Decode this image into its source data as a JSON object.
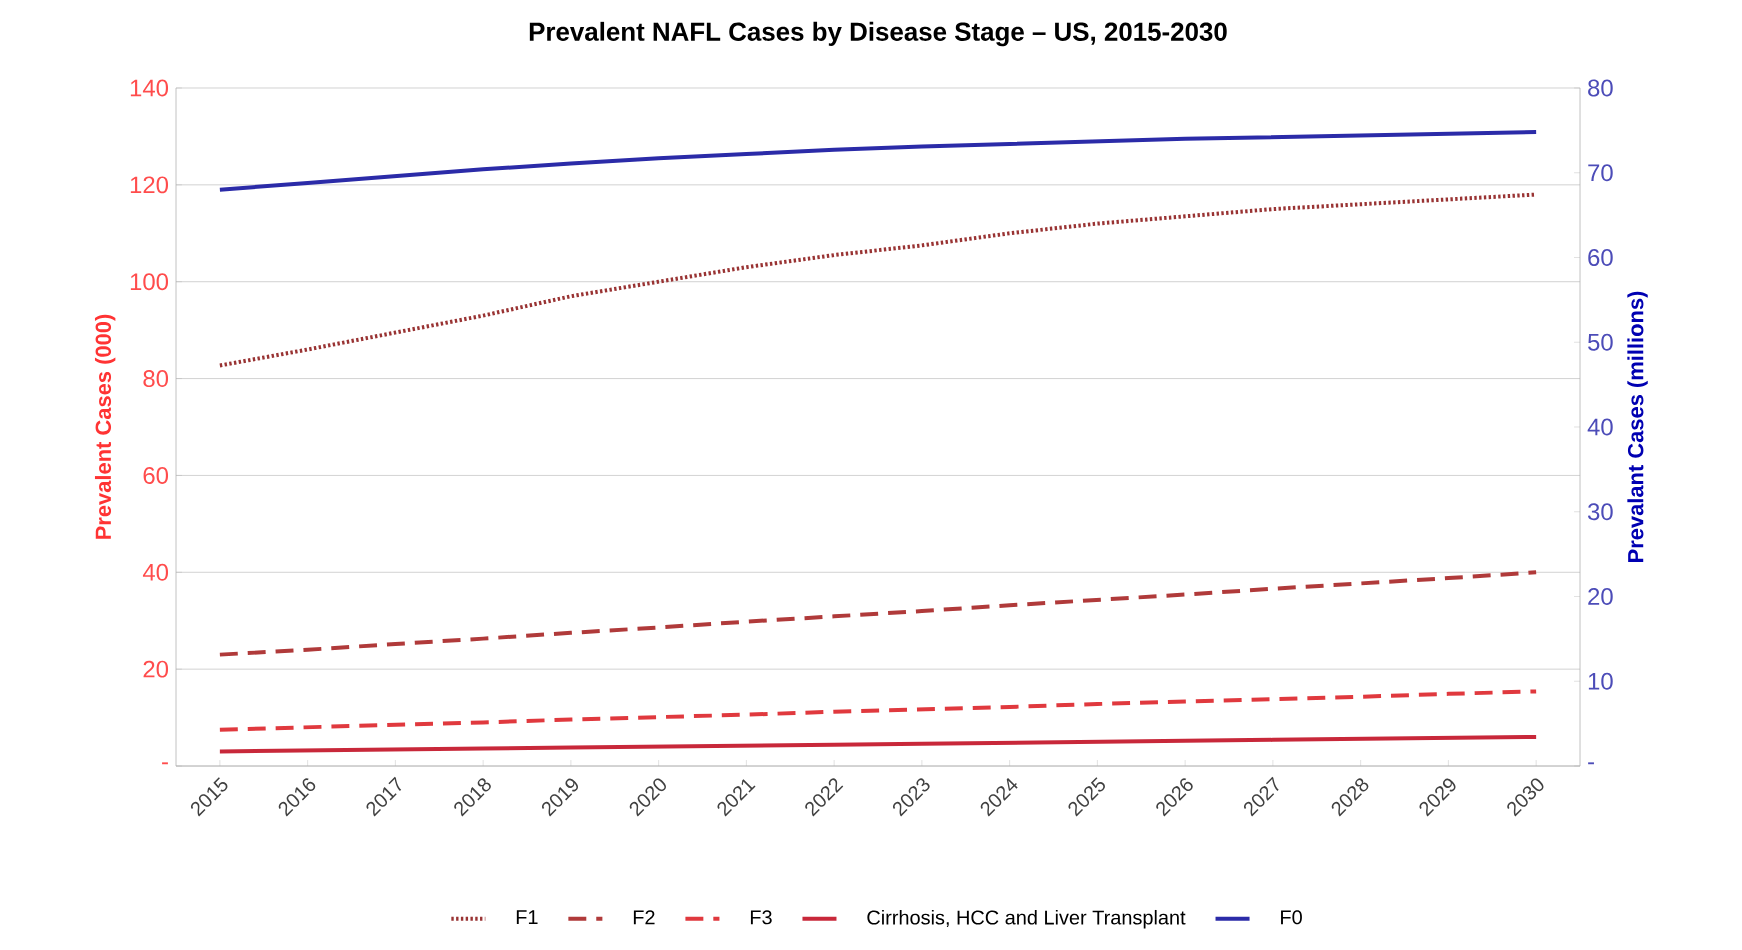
{
  "chart_data": {
    "type": "line",
    "title": "Prevalent NAFL Cases by Disease Stage  – US, 2015-2030",
    "ylabel": "Prevalent Cases (000)",
    "y2label": "Prevalant Cases (millions)",
    "categories": [
      "2015",
      "2016",
      "2017",
      "2018",
      "2019",
      "2020",
      "2021",
      "2022",
      "2023",
      "2024",
      "2025",
      "2026",
      "2027",
      "2028",
      "2029",
      "2030"
    ],
    "series": [
      {
        "name": "F1",
        "color": "#993333",
        "line_style": "dotted",
        "values": [
          82.7,
          86,
          89.5,
          93,
          97,
          100,
          103,
          105.5,
          107.5,
          110,
          112,
          113.5,
          115,
          116,
          117,
          118
        ]
      },
      {
        "name": "F2",
        "color": "#b03a3a",
        "line_style": "dashed",
        "values": [
          23,
          24,
          25.2,
          26.3,
          27.5,
          28.6,
          29.8,
          30.9,
          32,
          33.2,
          34.3,
          35.4,
          36.6,
          37.7,
          38.8,
          40
        ]
      },
      {
        "name": "F3",
        "color": "#e0393e",
        "line_style": "dashed",
        "values": [
          7.5,
          8,
          8.5,
          9,
          9.6,
          10.1,
          10.6,
          11.2,
          11.7,
          12.2,
          12.8,
          13.3,
          13.8,
          14.3,
          14.9,
          15.4
        ]
      },
      {
        "name": "Cirrhosis, HCC and Liver Transplant",
        "color": "#c8283a",
        "line_style": "solid",
        "values": [
          3,
          3.2,
          3.4,
          3.6,
          3.8,
          4,
          4.2,
          4.4,
          4.6,
          4.8,
          5,
          5.2,
          5.4,
          5.6,
          5.8,
          6
        ]
      },
      {
        "name": "F0",
        "color": "#2b2ba8",
        "line_style": "solid",
        "axis": "y2",
        "values": [
          68,
          68.8,
          69.6,
          70.4,
          71.1,
          71.7,
          72.2,
          72.7,
          73.1,
          73.4,
          73.7,
          74,
          74.2,
          74.4,
          74.6,
          74.8
        ]
      }
    ],
    "ylim": [
      0,
      140
    ],
    "yticks": [
      {
        "value": 0,
        "label": "-"
      },
      20,
      40,
      60,
      80,
      100,
      120,
      140
    ],
    "y2lim": [
      0,
      80
    ],
    "y2ticks": [
      {
        "value": 0,
        "label": "-"
      },
      10,
      20,
      30,
      40,
      50,
      60,
      70,
      80
    ],
    "grid": "y",
    "legend": "bottom",
    "marker": "none"
  }
}
